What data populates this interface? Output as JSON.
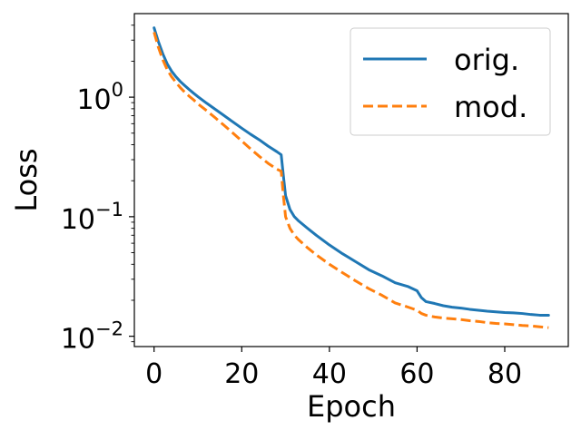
{
  "chart_data": {
    "type": "line",
    "title": "",
    "xlabel": "Epoch",
    "ylabel": "Loss",
    "x_scale": "linear",
    "y_scale": "log",
    "xlim": [
      -4.5,
      94.5
    ],
    "ylim": [
      0.0082,
      5.0
    ],
    "x_ticks": [
      0,
      20,
      40,
      60,
      80
    ],
    "x_tick_labels": [
      "0",
      "20",
      "40",
      "60",
      "80"
    ],
    "y_ticks": [
      0.01,
      0.1,
      1
    ],
    "y_tick_labels": [
      {
        "base": "10",
        "exp": "−2"
      },
      {
        "base": "10",
        "exp": "−1"
      },
      {
        "base": "10",
        "exp": "0"
      }
    ],
    "grid": false,
    "legend_position": "top-right",
    "series": [
      {
        "name": "orig.",
        "color": "#1f77b4",
        "style": "solid",
        "x": [
          0,
          1,
          2,
          3,
          4,
          5,
          6,
          7,
          8,
          9,
          10,
          12,
          14,
          16,
          18,
          20,
          22,
          24,
          26,
          28,
          29,
          29.5,
          30,
          31,
          32,
          33,
          35,
          37,
          40,
          43,
          46,
          49,
          52,
          55,
          58,
          60,
          61,
          62,
          64,
          66,
          68,
          70,
          72,
          74,
          76,
          78,
          80,
          82,
          84,
          86,
          88,
          90
        ],
        "y": [
          3.8,
          2.9,
          2.3,
          1.9,
          1.65,
          1.48,
          1.35,
          1.25,
          1.16,
          1.08,
          1.01,
          0.89,
          0.79,
          0.7,
          0.62,
          0.55,
          0.49,
          0.44,
          0.39,
          0.35,
          0.33,
          0.22,
          0.15,
          0.115,
          0.1,
          0.092,
          0.08,
          0.07,
          0.058,
          0.049,
          0.042,
          0.036,
          0.032,
          0.028,
          0.026,
          0.024,
          0.021,
          0.0195,
          0.0188,
          0.018,
          0.0175,
          0.0172,
          0.0168,
          0.0165,
          0.0162,
          0.016,
          0.0158,
          0.0157,
          0.0155,
          0.0152,
          0.015,
          0.015
        ]
      },
      {
        "name": "mod.",
        "color": "#ff7f0e",
        "style": "dashed",
        "x": [
          0,
          1,
          2,
          3,
          4,
          5,
          6,
          7,
          8,
          9,
          10,
          12,
          14,
          16,
          18,
          20,
          22,
          24,
          26,
          28,
          29,
          29.5,
          30,
          31,
          32,
          33,
          35,
          37,
          40,
          43,
          46,
          49,
          52,
          55,
          58,
          60,
          61,
          62,
          64,
          66,
          68,
          70,
          72,
          74,
          76,
          78,
          80,
          82,
          84,
          86,
          88,
          90
        ],
        "y": [
          3.5,
          2.6,
          2.05,
          1.7,
          1.48,
          1.33,
          1.2,
          1.1,
          1.02,
          0.95,
          0.88,
          0.77,
          0.67,
          0.58,
          0.5,
          0.43,
          0.37,
          0.32,
          0.28,
          0.25,
          0.24,
          0.15,
          0.1,
          0.08,
          0.07,
          0.064,
          0.055,
          0.048,
          0.04,
          0.034,
          0.029,
          0.025,
          0.022,
          0.019,
          0.0175,
          0.0165,
          0.0155,
          0.015,
          0.0145,
          0.0142,
          0.014,
          0.0138,
          0.0135,
          0.0133,
          0.013,
          0.0128,
          0.0127,
          0.0125,
          0.0123,
          0.0122,
          0.012,
          0.0118
        ]
      }
    ]
  }
}
